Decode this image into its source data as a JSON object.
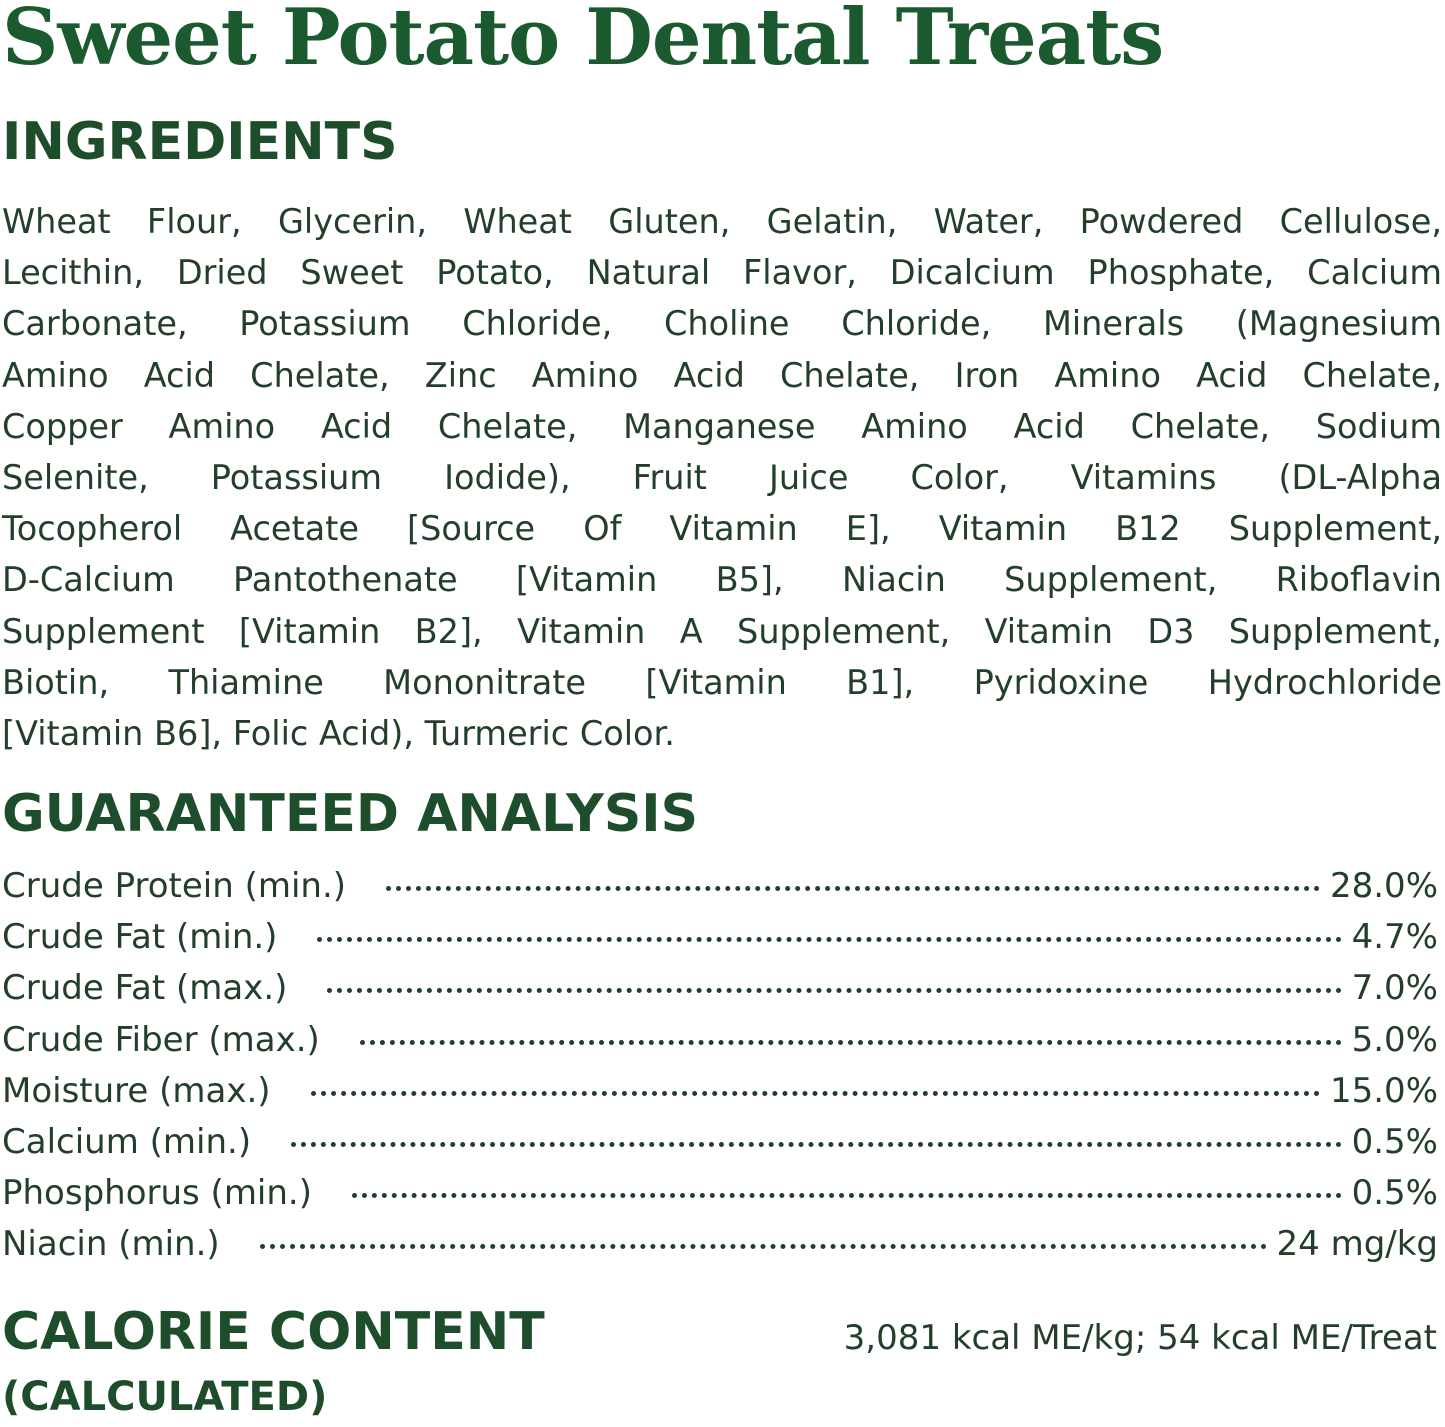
{
  "colors": {
    "title": "#1b5a2f",
    "heading": "#1d4d2b",
    "text": "#233f2b"
  },
  "title": "Sweet Potato Dental Treats",
  "ingredients": {
    "heading": "INGREDIENTS",
    "lines": [
      "Wheat Flour, Glycerin, Wheat Gluten, Gelatin, Water, Powdered Cellulose,",
      "Lecithin, Dried Sweet Potato, Natural Flavor, Dicalcium Phosphate, Calcium",
      "Carbonate, Potassium Chloride, Choline Chloride, Minerals (Magnesium",
      "Amino Acid Chelate, Zinc Amino Acid Chelate, Iron Amino Acid Chelate,",
      "Copper Amino Acid Chelate, Manganese Amino Acid Chelate, Sodium",
      "Selenite, Potassium Iodide), Fruit Juice Color, Vitamins (DL-Alpha",
      "Tocopherol Acetate [Source Of Vitamin E], Vitamin B12 Supplement,",
      "D-Calcium Pantothenate [Vitamin B5], Niacin Supplement, Riboflavin",
      "Supplement [Vitamin B2], Vitamin A Supplement, Vitamin D3 Supplement,",
      "Biotin, Thiamine Mononitrate [Vitamin B1], Pyridoxine Hydrochloride",
      "[Vitamin B6], Folic Acid), Turmeric Color."
    ]
  },
  "analysis": {
    "heading": "GUARANTEED ANALYSIS",
    "rows": [
      {
        "label": "Crude Protein (min.)",
        "value": "28.0%"
      },
      {
        "label": "Crude Fat (min.)",
        "value": "4.7%"
      },
      {
        "label": "Crude Fat (max.)",
        "value": "7.0%"
      },
      {
        "label": "Crude Fiber (max.)",
        "value": "5.0%"
      },
      {
        "label": "Moisture (max.)",
        "value": "15.0%"
      },
      {
        "label": "Calcium (min.)",
        "value": "0.5%"
      },
      {
        "label": "Phosphorus (min.)",
        "value": "0.5%"
      },
      {
        "label": "Niacin (min.)",
        "value": "24 mg/kg"
      }
    ]
  },
  "calorie": {
    "heading": "CALORIE CONTENT",
    "subheading": "(CALCULATED)",
    "value": "3,081 kcal ME/kg; 54 kcal ME/Treat"
  }
}
